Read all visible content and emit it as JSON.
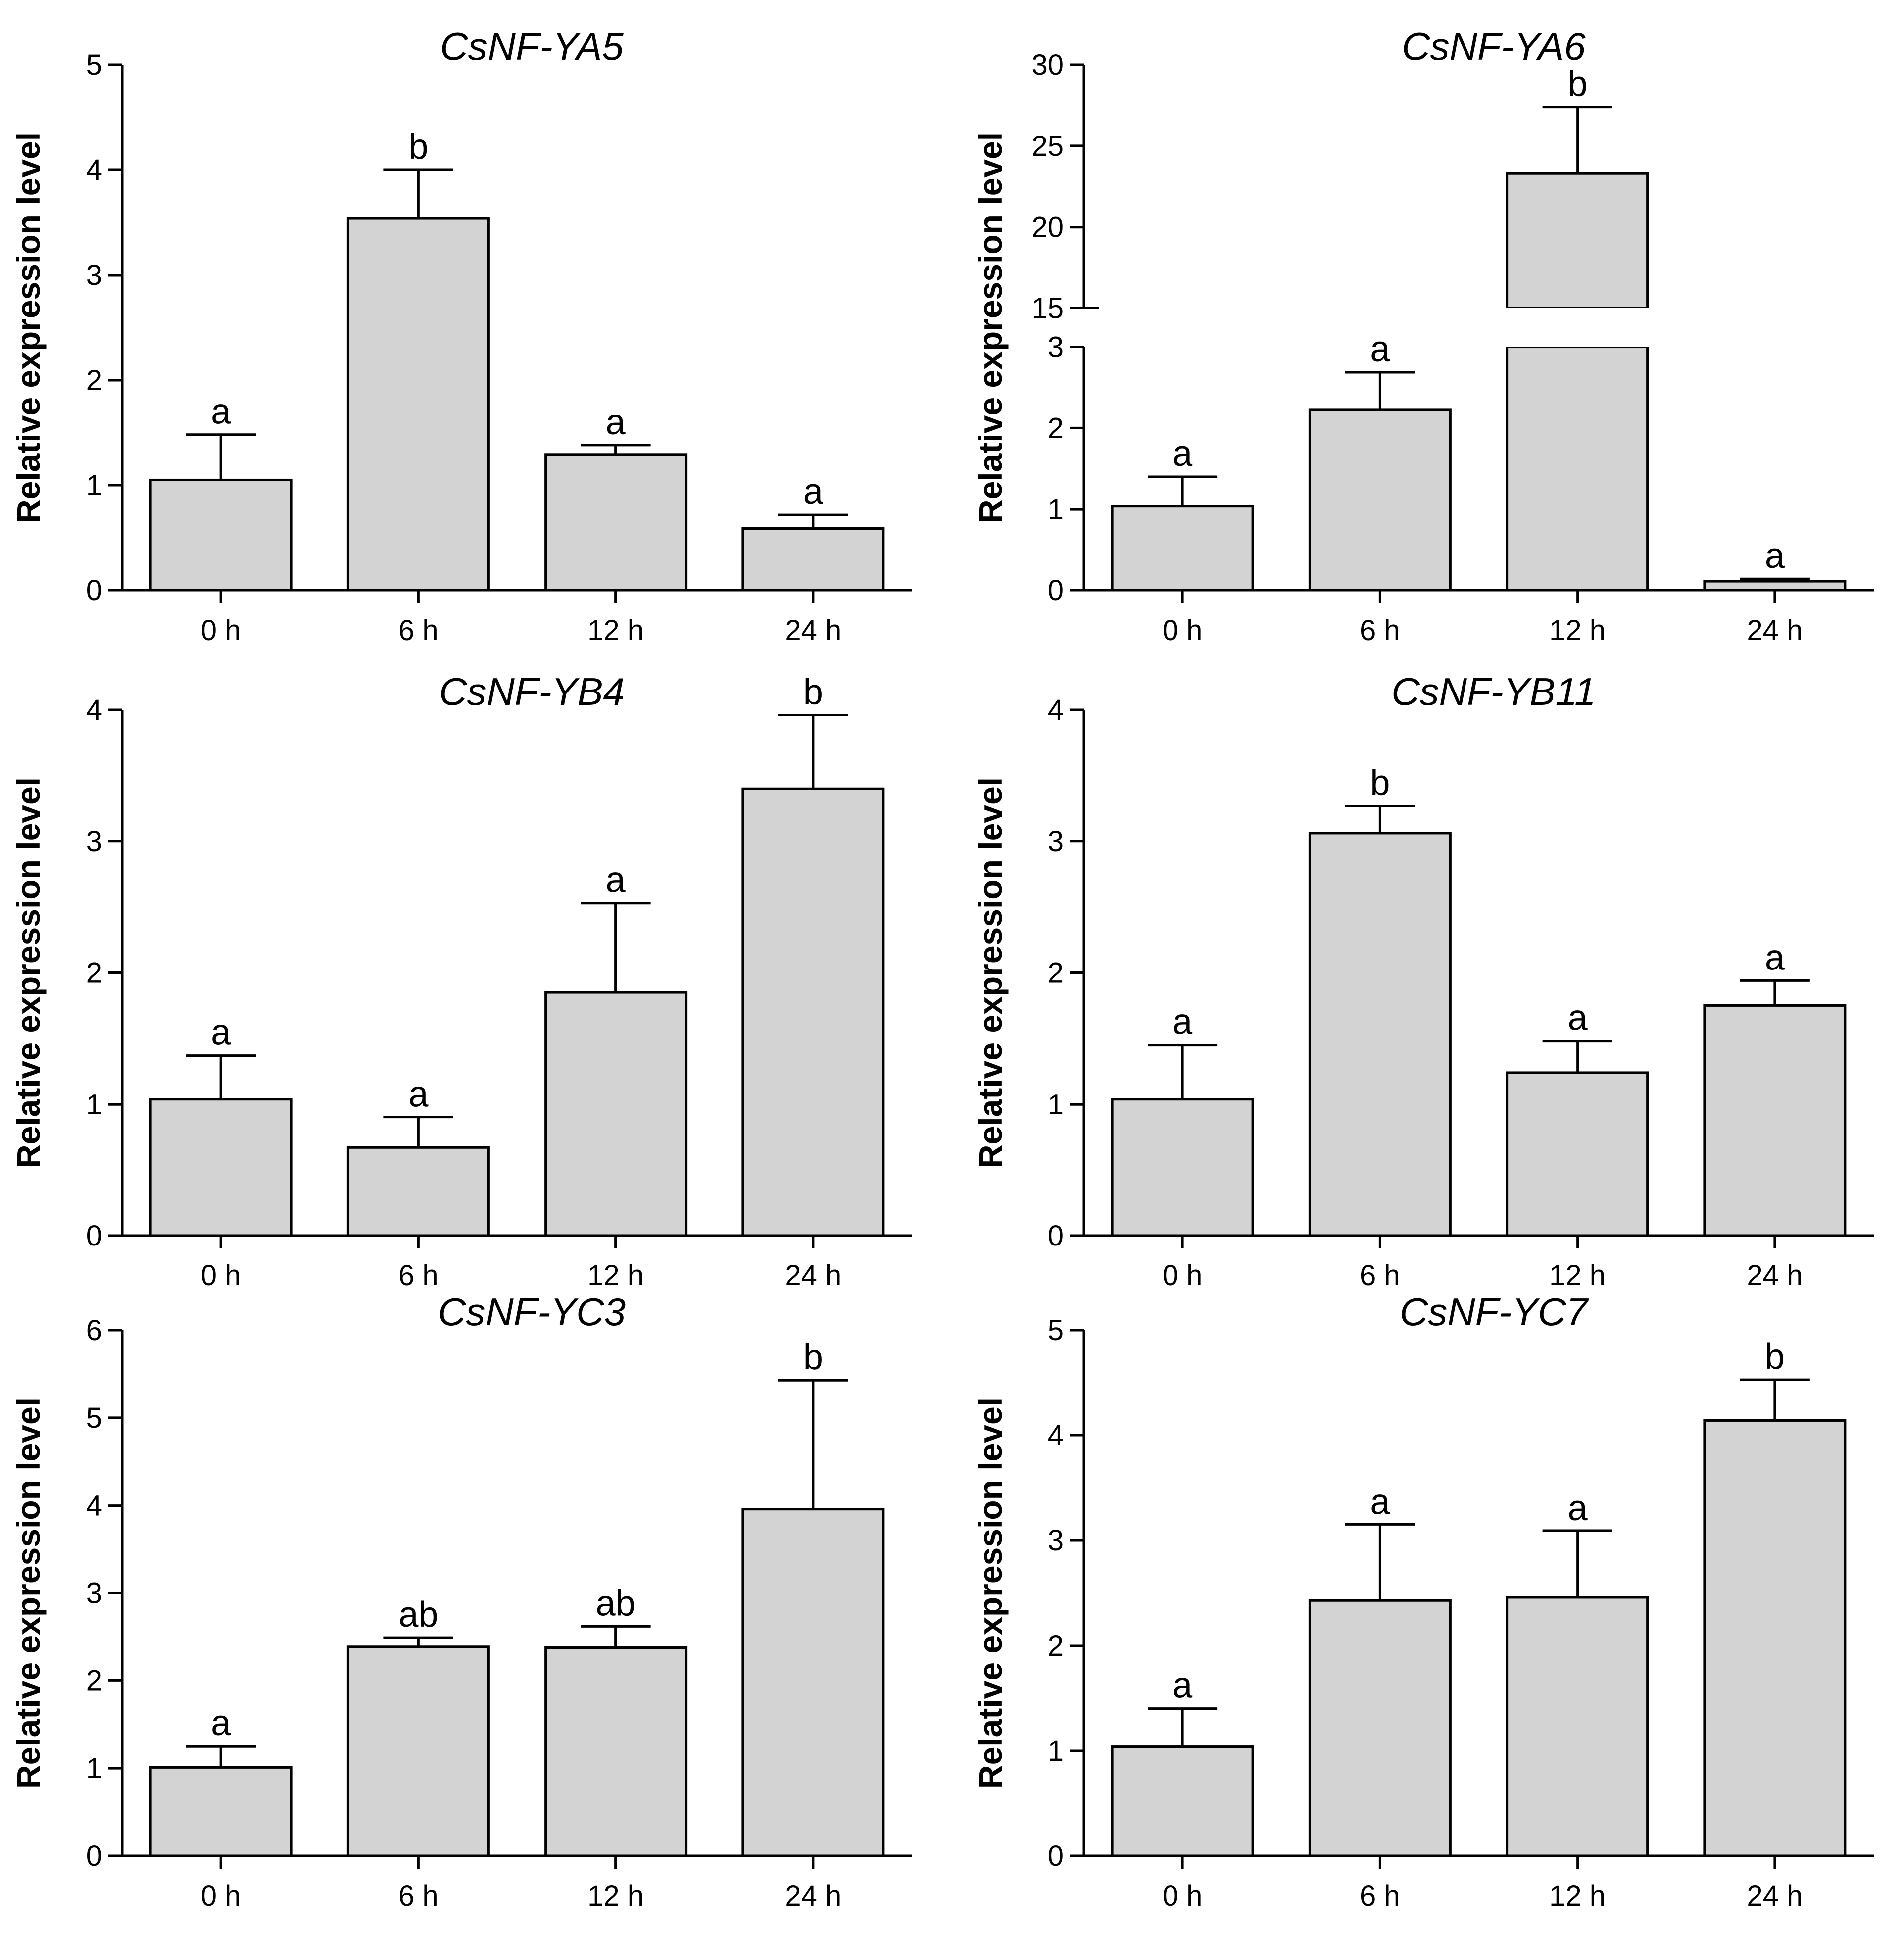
{
  "chart_data": [
    {
      "type": "bar",
      "title": "CsNF-YA5",
      "ylabel": "Relative expression level",
      "xlabel": "",
      "categories": [
        "0 h",
        "6 h",
        "12 h",
        "24 h"
      ],
      "values": [
        1.05,
        3.54,
        1.29,
        0.59
      ],
      "errors": [
        0.43,
        0.46,
        0.09,
        0.13
      ],
      "significance": [
        "a",
        "b",
        "a",
        "a"
      ],
      "ylim": [
        0,
        5
      ],
      "yticks": [
        0,
        1,
        2,
        3,
        4,
        5
      ]
    },
    {
      "type": "bar",
      "title": "CsNF-YA6",
      "ylabel": "Relative expression level",
      "xlabel": "",
      "categories": [
        "0 h",
        "6 h",
        "12 h",
        "24 h"
      ],
      "values": [
        1.04,
        2.23,
        23.3,
        0.11
      ],
      "errors": [
        0.36,
        0.46,
        4.1,
        0.03
      ],
      "significance": [
        "a",
        "a",
        "b",
        "a"
      ],
      "ylim": [
        0,
        30
      ],
      "axis_break": [
        3,
        15
      ],
      "yticks": [
        0,
        1,
        2,
        3,
        15,
        20,
        25,
        30
      ]
    },
    {
      "type": "bar",
      "title": "CsNF-YB4",
      "ylabel": "Relative expression level",
      "xlabel": "",
      "categories": [
        "0 h",
        "6 h",
        "12 h",
        "24 h"
      ],
      "values": [
        1.04,
        0.67,
        1.85,
        3.4
      ],
      "errors": [
        0.33,
        0.23,
        0.68,
        0.56
      ],
      "significance": [
        "a",
        "a",
        "a",
        "b"
      ],
      "ylim": [
        0,
        4
      ],
      "yticks": [
        0,
        1,
        2,
        3,
        4
      ]
    },
    {
      "type": "bar",
      "title": "CsNF-YB11",
      "ylabel": "Relative expression level",
      "xlabel": "",
      "categories": [
        "0 h",
        "6 h",
        "12 h",
        "24 h"
      ],
      "values": [
        1.04,
        3.06,
        1.24,
        1.75
      ],
      "errors": [
        0.41,
        0.21,
        0.24,
        0.19
      ],
      "significance": [
        "a",
        "b",
        "a",
        "a"
      ],
      "ylim": [
        0,
        4
      ],
      "yticks": [
        0,
        1,
        2,
        3,
        4
      ]
    },
    {
      "type": "bar",
      "title": "CsNF-YC3",
      "ylabel": "Relative expression level",
      "xlabel": "",
      "categories": [
        "0 h",
        "6 h",
        "12 h",
        "24 h"
      ],
      "values": [
        1.01,
        2.39,
        2.38,
        3.96
      ],
      "errors": [
        0.24,
        0.1,
        0.24,
        1.47
      ],
      "significance": [
        "a",
        "ab",
        "ab",
        "b"
      ],
      "ylim": [
        0,
        6
      ],
      "yticks": [
        0,
        1,
        2,
        3,
        4,
        5,
        6
      ]
    },
    {
      "type": "bar",
      "title": "CsNF-YC7",
      "ylabel": "Relative expression level",
      "xlabel": "",
      "categories": [
        "0 h",
        "6 h",
        "12 h",
        "24 h"
      ],
      "values": [
        1.04,
        2.43,
        2.46,
        4.14
      ],
      "errors": [
        0.36,
        0.72,
        0.63,
        0.39
      ],
      "significance": [
        "a",
        "a",
        "a",
        "b"
      ],
      "ylim": [
        0,
        5
      ],
      "yticks": [
        0,
        1,
        2,
        3,
        4,
        5
      ]
    }
  ]
}
